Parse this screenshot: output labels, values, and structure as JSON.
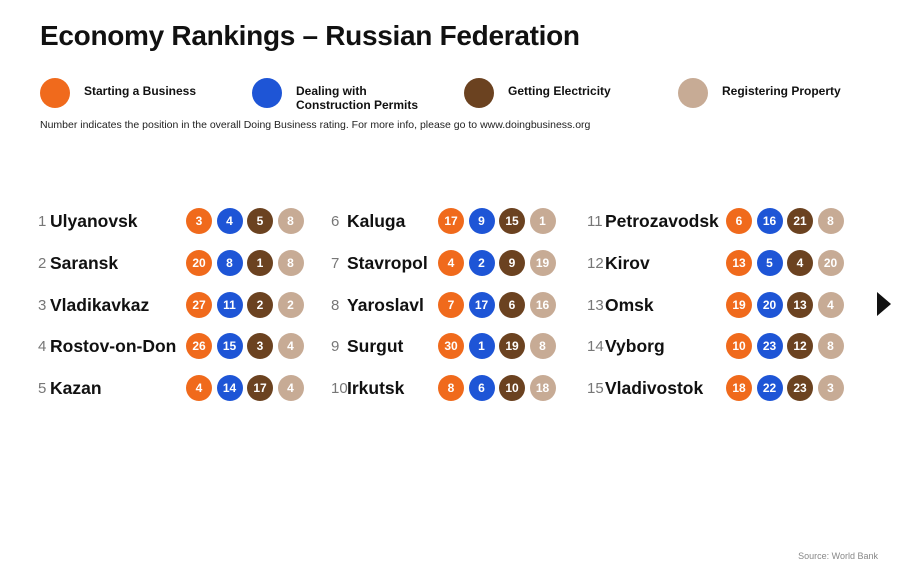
{
  "title": "Economy Rankings – Russian Federation",
  "note": "Number indicates the position in the overall Doing Business rating. For more info, please go to www.doingbusiness.org",
  "source": "Source: World Bank",
  "legend": [
    {
      "label": "Starting a Business",
      "color": "#f06a1c"
    },
    {
      "label": "Dealing with Construction Permits",
      "color": "#1e55d6"
    },
    {
      "label": "Getting Electricity",
      "color": "#6b4220"
    },
    {
      "label": "Registering Property",
      "color": "#c7ab95"
    }
  ],
  "chart_data": {
    "type": "table",
    "title": "Economy Rankings – Russian Federation",
    "columns": [
      "Starting a Business",
      "Dealing with Construction Permits",
      "Getting Electricity",
      "Registering Property"
    ],
    "rows": [
      {
        "rank": "1",
        "city": "Ulyanovsk",
        "values": [
          3,
          4,
          5,
          8
        ]
      },
      {
        "rank": "2",
        "city": "Saransk",
        "values": [
          20,
          8,
          1,
          8
        ]
      },
      {
        "rank": "3",
        "city": "Vladikavkaz",
        "values": [
          27,
          11,
          2,
          2
        ]
      },
      {
        "rank": "4",
        "city": "Rostov-on-Don",
        "values": [
          26,
          15,
          3,
          4
        ]
      },
      {
        "rank": "5",
        "city": "Kazan",
        "values": [
          4,
          14,
          17,
          4
        ]
      },
      {
        "rank": "6",
        "city": "Kaluga",
        "values": [
          17,
          9,
          15,
          1
        ]
      },
      {
        "rank": "7",
        "city": "Stavropol",
        "values": [
          4,
          2,
          9,
          19
        ]
      },
      {
        "rank": "8",
        "city": "Yaroslavl",
        "values": [
          7,
          17,
          6,
          16
        ]
      },
      {
        "rank": "9",
        "city": "Surgut",
        "values": [
          30,
          1,
          19,
          8
        ]
      },
      {
        "rank": "10",
        "city": "Irkutsk",
        "values": [
          8,
          6,
          10,
          18
        ]
      },
      {
        "rank": "11",
        "city": "Petrozavodsk",
        "values": [
          6,
          16,
          21,
          8
        ]
      },
      {
        "rank": "12",
        "city": "Kirov",
        "values": [
          13,
          5,
          4,
          20
        ]
      },
      {
        "rank": "13",
        "city": "Omsk",
        "values": [
          19,
          20,
          13,
          4
        ]
      },
      {
        "rank": "14",
        "city": "Vyborg",
        "values": [
          10,
          23,
          12,
          8
        ]
      },
      {
        "rank": "15",
        "city": "Vladivostok",
        "values": [
          18,
          22,
          23,
          3
        ]
      }
    ]
  }
}
